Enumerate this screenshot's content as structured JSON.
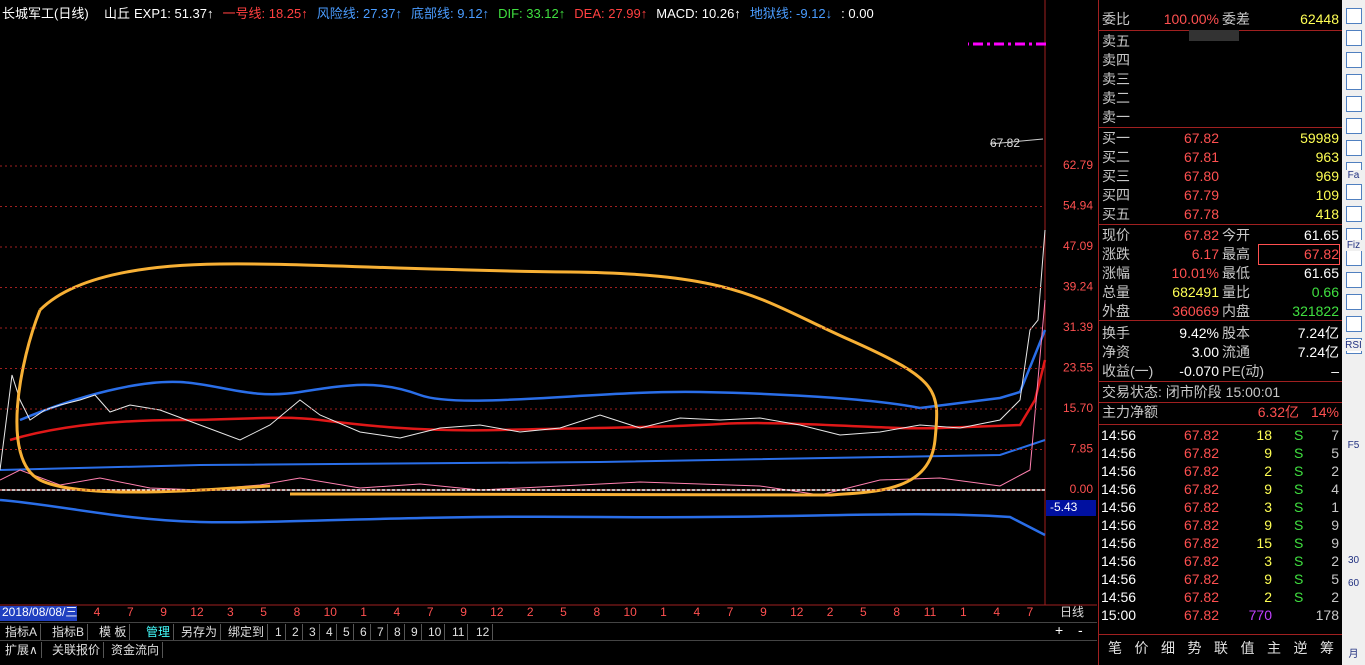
{
  "header": {
    "stock": "长城军工(日线)",
    "template": "山丘",
    "indicators": [
      {
        "label": "EXP1: 51.37↑",
        "color": "#ffffff"
      },
      {
        "label": "一号线: 18.25↑",
        "color": "#ff4040"
      },
      {
        "label": "风险线: 27.37↑",
        "color": "#4a9cff"
      },
      {
        "label": "底部线: 9.12↑",
        "color": "#4a9cff"
      },
      {
        "label": "DIF: 33.12↑",
        "color": "#40e040"
      },
      {
        "label": "DEA: 27.99↑",
        "color": "#ff4040"
      },
      {
        "label": "MACD: 10.26↑",
        "color": "#ffffff"
      },
      {
        "label": "地狱线: -9.12↓",
        "color": "#4a9cff"
      },
      {
        "label": ": 0.00",
        "color": "#ffffff"
      }
    ]
  },
  "axis": {
    "y_labels": [
      "62.79",
      "54.94",
      "47.09",
      "39.24",
      "31.39",
      "23.55",
      "15.70",
      "7.85",
      "0.00"
    ],
    "low_label": "-5.43",
    "last_label": "67.82"
  },
  "x_axis": {
    "date": "2018/08/08/三",
    "labels": [
      "4",
      "7",
      "9",
      "12",
      "3",
      "5",
      "8",
      "10",
      "1",
      "4",
      "7",
      "9",
      "12",
      "2",
      "5",
      "8",
      "10",
      "1",
      "4",
      "7",
      "9",
      "12",
      "2",
      "5",
      "8",
      "11",
      "1",
      "4",
      "7"
    ],
    "period": "日线"
  },
  "toolbar": {
    "tabs": [
      "指标A",
      "指标B",
      "模 板",
      "管理",
      "另存为",
      "绑定到"
    ],
    "pages": [
      "1",
      "2",
      "3",
      "4",
      "5",
      "6",
      "7",
      "8",
      "9",
      "10",
      "11",
      "12"
    ],
    "sub_tabs": [
      "扩展∧",
      "关联报价",
      "资金流向"
    ]
  },
  "quote": {
    "order_ratio": {
      "label": "委比",
      "value": "100.00%",
      "diff_label": "委差",
      "diff": "62448"
    },
    "asks": [
      "卖五",
      "卖四",
      "卖三",
      "卖二",
      "卖一"
    ],
    "bids": [
      [
        "买一",
        "67.82",
        "59989"
      ],
      [
        "买二",
        "67.81",
        "963"
      ],
      [
        "买三",
        "67.80",
        "969"
      ],
      [
        "买四",
        "67.79",
        "109"
      ],
      [
        "买五",
        "67.78",
        "418"
      ]
    ],
    "stats": [
      [
        "现价",
        "67.82",
        "今开",
        "61.65"
      ],
      [
        "涨跌",
        "6.17",
        "最高",
        "67.82"
      ],
      [
        "涨幅",
        "10.01%",
        "最低",
        "61.65"
      ],
      [
        "总量",
        "682491",
        "量比",
        "0.66"
      ],
      [
        "外盘",
        "360669",
        "内盘",
        "321822"
      ],
      [
        "换手",
        "9.42%",
        "股本",
        "7.24亿"
      ],
      [
        "净资",
        "3.00",
        "流通",
        "7.24亿"
      ],
      [
        "收益(一)",
        "-0.070",
        "PE(动)",
        "–"
      ]
    ],
    "status": "交易状态: 闭市阶段 15:00:01",
    "main_net": {
      "label": "主力净额",
      "value": "6.32亿",
      "pct": "14%"
    },
    "trades": [
      [
        "14:56",
        "67.82",
        "18",
        "S",
        "7"
      ],
      [
        "14:56",
        "67.82",
        "9",
        "S",
        "5"
      ],
      [
        "14:56",
        "67.82",
        "2",
        "S",
        "2"
      ],
      [
        "14:56",
        "67.82",
        "9",
        "S",
        "4"
      ],
      [
        "14:56",
        "67.82",
        "3",
        "S",
        "1"
      ],
      [
        "14:56",
        "67.82",
        "9",
        "S",
        "9"
      ],
      [
        "14:56",
        "67.82",
        "15",
        "S",
        "9"
      ],
      [
        "14:56",
        "67.82",
        "3",
        "S",
        "2"
      ],
      [
        "14:56",
        "67.82",
        "9",
        "S",
        "5"
      ],
      [
        "14:56",
        "67.82",
        "2",
        "S",
        "2"
      ],
      [
        "15:00",
        "67.82",
        "770",
        "",
        "178"
      ]
    ],
    "tabs": [
      "笔",
      "价",
      "细",
      "势",
      "联",
      "值",
      "主",
      "逆",
      "筹"
    ]
  },
  "side_icons": [
    "Fa",
    "Fiz",
    "RSI",
    "F5",
    "30",
    "60",
    "月"
  ]
}
